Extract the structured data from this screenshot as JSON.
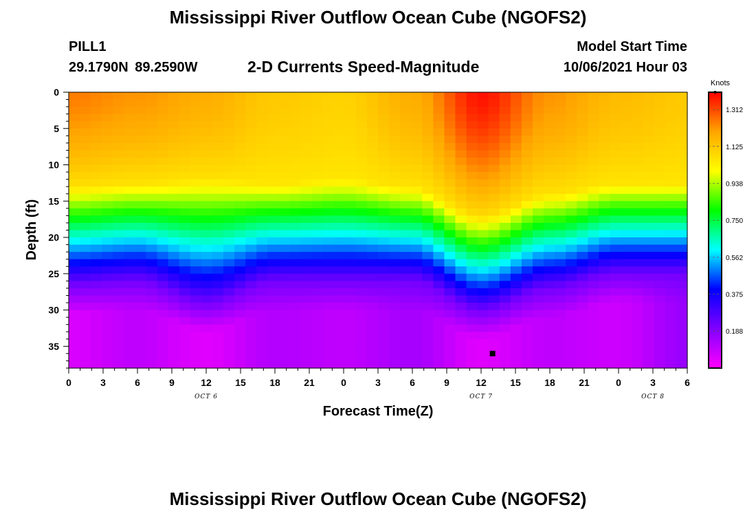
{
  "header": {
    "title": "Mississippi River Outflow Ocean Cube (NGOFS2)",
    "station": "PILL1",
    "coords": "29.1790N 89.2590W",
    "subtitle": "2-D Currents Speed-Magnitude",
    "model_label": "Model Start Time",
    "model_time": "10/06/2021 Hour 03"
  },
  "footer": {
    "title": "Mississippi River Outflow Ocean Cube (NGOFS2)"
  },
  "chart_data": {
    "type": "heatmap",
    "title": "2-D Currents Speed-Magnitude",
    "xlabel": "Forecast Time(Z)",
    "ylabel": "Depth (ft)",
    "x_ticks": [
      "0",
      "3",
      "6",
      "9",
      "12",
      "15",
      "18",
      "21",
      "0",
      "3",
      "6",
      "9",
      "12",
      "15",
      "18",
      "21",
      "0",
      "3",
      "6"
    ],
    "x_dates": [
      {
        "label": "OCT 6",
        "hour": 12
      },
      {
        "label": "OCT 7",
        "hour": 36
      },
      {
        "label": "OCT 8",
        "hour": 51
      }
    ],
    "xlim_hours": [
      0,
      54
    ],
    "y_ticks": [
      "0",
      "5",
      "10",
      "15",
      "20",
      "25",
      "30",
      "35"
    ],
    "ylim": [
      0,
      38
    ],
    "y_inverted": true,
    "colorbar": {
      "title": "Knots",
      "ticks": [
        "1.312",
        "1.125",
        "0.938",
        "0.750",
        "0.562",
        "0.375",
        "0.188"
      ],
      "range": [
        0,
        1.4
      ],
      "colors": [
        "#ff00ff",
        "#8000ff",
        "#0000ff",
        "#00ffff",
        "#00ff00",
        "#ffff00",
        "#ffa500",
        "#ff0000"
      ]
    },
    "marker": {
      "hour": 37,
      "depth": 36
    },
    "speed_profile": {
      "hours": [
        0,
        6,
        12,
        18,
        24,
        30,
        36,
        42,
        48,
        54
      ],
      "surface": [
        1.25,
        1.22,
        1.18,
        1.12,
        1.1,
        1.18,
        1.38,
        1.22,
        1.15,
        1.12
      ],
      "deep": [
        0.06,
        0.1,
        0.05,
        0.12,
        0.1,
        0.14,
        0.05,
        0.1,
        0.08,
        0.16
      ],
      "shear_depth": [
        13.0,
        12.5,
        12.0,
        12.5,
        12.0,
        13.0,
        17.0,
        14.0,
        12.5,
        12.5
      ],
      "deep_depth": [
        26.5,
        26.0,
        29.0,
        26.0,
        26.0,
        26.0,
        30.0,
        27.0,
        25.0,
        25.0
      ]
    }
  }
}
